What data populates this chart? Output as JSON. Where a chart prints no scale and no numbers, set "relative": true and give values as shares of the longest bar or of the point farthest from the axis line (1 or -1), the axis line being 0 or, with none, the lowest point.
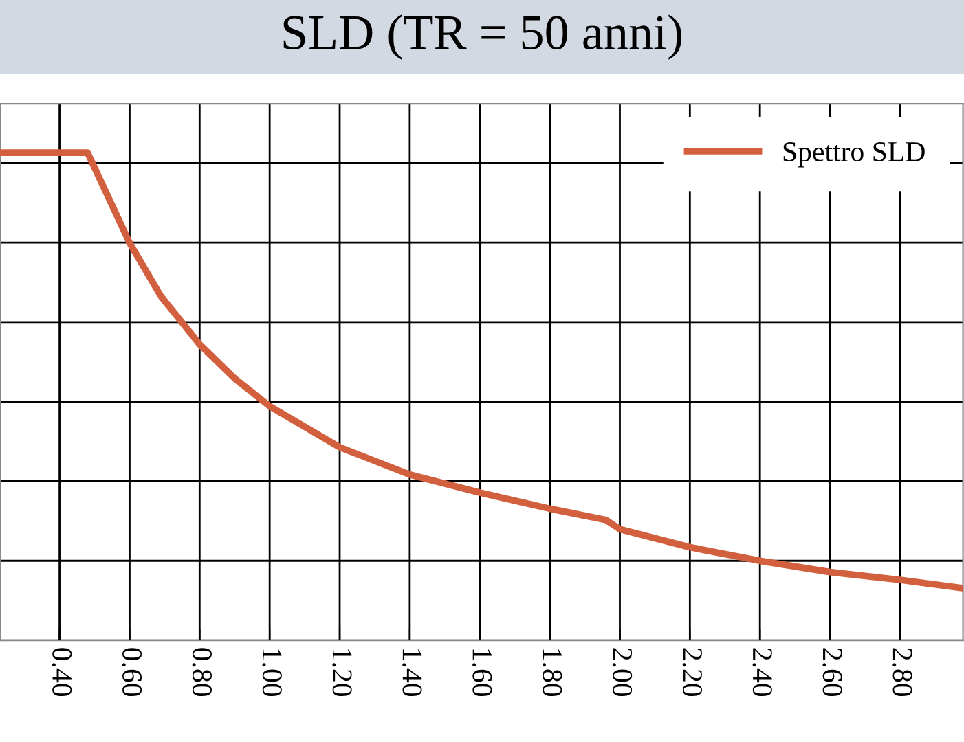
{
  "chart_data": {
    "type": "line",
    "title": "SLD (TR = 50 anni)",
    "relative": true,
    "grid": true,
    "legend": "top right",
    "xlim": [
      0.23,
      2.98
    ],
    "xticks": [
      {
        "value": 0.4,
        "label": "0.40"
      },
      {
        "value": 0.6,
        "label": "0.60"
      },
      {
        "value": 0.8,
        "label": "0.80"
      },
      {
        "value": 1.0,
        "label": "1.00"
      },
      {
        "value": 1.2,
        "label": "1.20"
      },
      {
        "value": 1.4,
        "label": "1.40"
      },
      {
        "value": 1.6,
        "label": "1.60"
      },
      {
        "value": 1.8,
        "label": "1.80"
      },
      {
        "value": 2.0,
        "label": "2.00"
      },
      {
        "value": 2.2,
        "label": "2.20"
      },
      {
        "value": 2.4,
        "label": "2.40"
      },
      {
        "value": 2.6,
        "label": "2.60"
      },
      {
        "value": 2.8,
        "label": "2.80"
      }
    ],
    "x": [
      0.23,
      0.48,
      0.6,
      0.69,
      0.8,
      0.9,
      1.0,
      1.2,
      1.4,
      1.6,
      1.8,
      1.96,
      2.0,
      2.2,
      2.4,
      2.6,
      2.8,
      2.98
    ],
    "series": [
      {
        "name": "Spettro SLD",
        "color": "#d2603f",
        "values": [
          1,
          1,
          0.815,
          0.705,
          0.607,
          0.537,
          0.48,
          0.396,
          0.34,
          0.303,
          0.27,
          0.247,
          0.228,
          0.191,
          0.163,
          0.14,
          0.124,
          0.107
        ]
      }
    ]
  }
}
